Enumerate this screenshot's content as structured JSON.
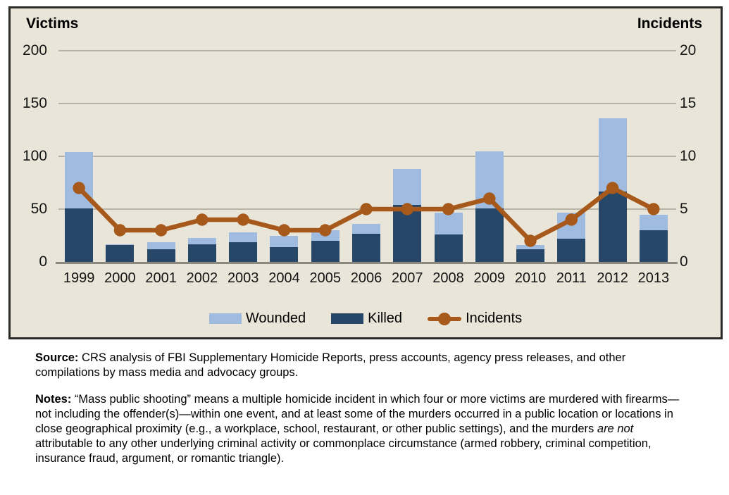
{
  "chart": {
    "left_axis_title": "Victims",
    "right_axis_title": "Incidents",
    "legend": [
      {
        "label": "Wounded",
        "type": "swatch",
        "color": "#9fbbdf"
      },
      {
        "label": "Killed",
        "type": "swatch",
        "color": "#274768"
      },
      {
        "label": "Incidents",
        "type": "line-dot",
        "color": "#a6591a"
      }
    ]
  },
  "chart_data": {
    "type": "bar",
    "subtype": "stacked-bars-with-line",
    "categories": [
      "1999",
      "2000",
      "2001",
      "2002",
      "2003",
      "2004",
      "2005",
      "2006",
      "2007",
      "2008",
      "2009",
      "2010",
      "2011",
      "2012",
      "2013"
    ],
    "series": [
      {
        "name": "Killed",
        "type": "bar",
        "stack": "victims",
        "axis": "left",
        "color": "#274768",
        "values": [
          51,
          16,
          12,
          17,
          19,
          14,
          20,
          27,
          54,
          26,
          51,
          12,
          22,
          67,
          30
        ]
      },
      {
        "name": "Wounded",
        "type": "bar",
        "stack": "victims",
        "axis": "left",
        "color": "#9fbbdf",
        "values": [
          53,
          1,
          7,
          6,
          9,
          11,
          10,
          9,
          34,
          21,
          54,
          4,
          25,
          69,
          15
        ]
      },
      {
        "name": "Incidents",
        "type": "line",
        "axis": "right",
        "color": "#a6591a",
        "values": [
          7,
          3,
          3,
          4,
          4,
          3,
          3,
          5,
          5,
          5,
          6,
          2,
          4,
          7,
          5
        ]
      }
    ],
    "left_axis": {
      "title": "Victims",
      "range": [
        0,
        200
      ],
      "ticks": [
        0,
        50,
        100,
        150,
        200
      ]
    },
    "right_axis": {
      "title": "Incidents",
      "range": [
        0,
        20
      ],
      "ticks": [
        0,
        5,
        10,
        15,
        20
      ]
    },
    "grid": true,
    "legend_position": "bottom",
    "plot_background": "#e9e6d9"
  },
  "source": {
    "label": "Source:",
    "text": "CRS analysis of FBI Supplementary Homicide Reports, press accounts, agency press releases, and other compilations by mass media and advocacy groups."
  },
  "notes": {
    "label": "Notes:",
    "text_before_italic": "“Mass public shooting” means a multiple homicide incident in which four or more victims are murdered with firearms—not including the offender(s)—within one event, and at least some of the murders occurred in a public location or locations in close geographical proximity (e.g., a workplace, school, restaurant, or other public settings), and the murders ",
    "italic": "are not",
    "text_after_italic": " attributable to any other underlying criminal activity or commonplace circumstance (armed robbery, criminal competition, insurance fraud, argument, or romantic triangle)."
  }
}
